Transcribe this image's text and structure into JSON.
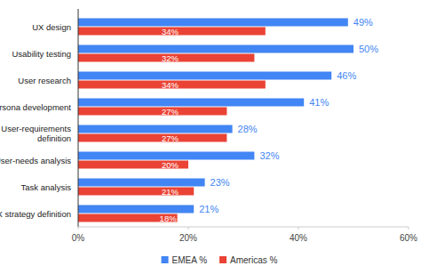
{
  "chart_data": {
    "type": "bar",
    "orientation": "horizontal",
    "categories": [
      "UX design",
      "Usability testing",
      "User research",
      "Persona development",
      "User-requirements definition",
      "User-needs analysis",
      "Task analysis",
      "UX strategy definition"
    ],
    "series": [
      {
        "name": "EMEA %",
        "color": "#4285f4",
        "values": [
          49,
          50,
          46,
          41,
          28,
          32,
          23,
          21
        ],
        "value_labels": [
          "49%",
          "50%",
          "46%",
          "41%",
          "28%",
          "32%",
          "23%",
          "21%"
        ]
      },
      {
        "name": "Americas %",
        "color": "#ea4335",
        "values": [
          34,
          32,
          34,
          27,
          27,
          20,
          21,
          18
        ],
        "value_labels": [
          "34%",
          "32%",
          "34%",
          "27%",
          "27%",
          "20%",
          "21%",
          "18%"
        ]
      }
    ],
    "xlim": [
      0,
      60
    ],
    "xticks": [
      {
        "value": 0,
        "label": "0%"
      },
      {
        "value": 20,
        "label": "20%"
      },
      {
        "value": 40,
        "label": "40%"
      },
      {
        "value": 60,
        "label": "60%"
      }
    ],
    "grid": false,
    "legend": "bottom",
    "data_labels": true
  }
}
